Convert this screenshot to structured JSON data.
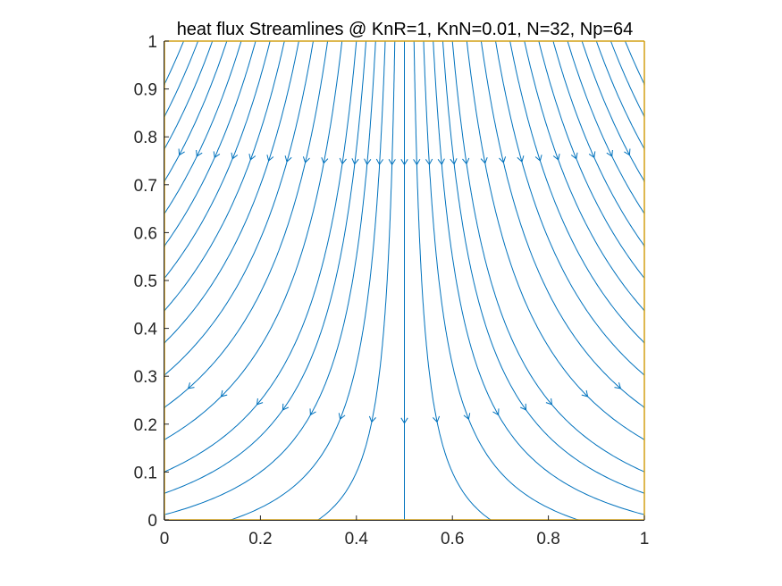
{
  "chart_data": {
    "type": "streamline",
    "title": "heat flux Streamlines @ KnR=1, KnN=0.01, N=32, Np=64",
    "xlabel": "",
    "ylabel": "",
    "xlim": [
      0,
      1
    ],
    "ylim": [
      0,
      1
    ],
    "xticks": [
      "0",
      "0.2",
      "0.4",
      "0.6",
      "0.8",
      "1"
    ],
    "xtick_values": [
      0,
      0.2,
      0.4,
      0.6,
      0.8,
      1
    ],
    "yticks": [
      "0",
      "0.1",
      "0.2",
      "0.3",
      "0.4",
      "0.5",
      "0.6",
      "0.7",
      "0.8",
      "0.9",
      "1"
    ],
    "ytick_values": [
      0,
      0.1,
      0.2,
      0.3,
      0.4,
      0.5,
      0.6,
      0.7,
      0.8,
      0.9,
      1
    ],
    "grid": false,
    "legend": "none",
    "line_color": "#0072BD",
    "boundary_color": "#D4A017",
    "axis_color": "#262626",
    "flow_direction": "downward, diverging away from x=0.5 toward the bottom corners",
    "stagnation_x": 0.5,
    "seed_x": [
      0.04,
      0.07,
      0.1,
      0.13,
      0.16,
      0.19,
      0.22,
      0.25,
      0.28,
      0.31,
      0.34,
      0.37,
      0.4,
      0.42,
      0.44,
      0.46,
      0.48,
      0.5,
      0.52,
      0.54,
      0.56,
      0.58,
      0.6,
      0.63,
      0.66,
      0.69,
      0.72,
      0.75,
      0.78,
      0.81,
      0.84,
      0.87,
      0.9,
      0.93,
      0.96
    ],
    "side_seed_y": [
      0.93,
      0.83,
      0.73,
      0.63,
      0.53,
      0.43,
      0.33,
      0.22,
      0.11
    ]
  }
}
